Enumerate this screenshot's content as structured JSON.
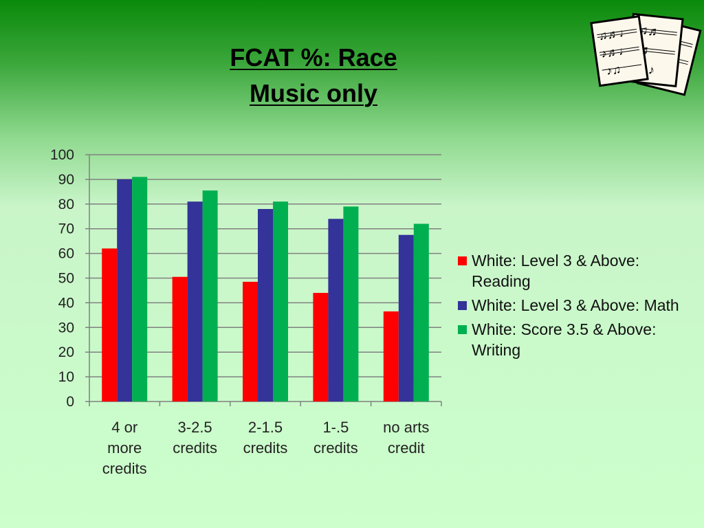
{
  "title": {
    "line1": "FCAT %: Race",
    "line2": "Music only"
  },
  "colors": {
    "reading": "#ff0000",
    "math": "#333399",
    "writing": "#00b050"
  },
  "decoration": {
    "icon": "sheet-music-icon"
  },
  "chart_data": {
    "type": "bar",
    "title": "",
    "xlabel": "",
    "ylabel": "",
    "ylim": [
      0,
      100
    ],
    "yticks": [
      0,
      10,
      20,
      30,
      40,
      50,
      60,
      70,
      80,
      90,
      100
    ],
    "grid": true,
    "legend_position": "right",
    "categories": [
      [
        "4 or",
        "more",
        "credits"
      ],
      [
        "3-2.5",
        "credits"
      ],
      [
        "2-1.5",
        "credits"
      ],
      [
        "1-.5",
        "credits"
      ],
      [
        "no arts",
        "credit"
      ]
    ],
    "series": [
      {
        "name": "White: Level 3 & Above: Reading",
        "color": "#ff0000",
        "values": [
          62,
          50.5,
          48.5,
          44,
          36.5
        ]
      },
      {
        "name": "White: Level 3 & Above: Math",
        "color": "#333399",
        "values": [
          90,
          81,
          78,
          74,
          67.5
        ]
      },
      {
        "name": "White: Score 3.5 & Above: Writing",
        "color": "#00b050",
        "values": [
          91,
          85.5,
          81,
          79,
          72
        ]
      }
    ]
  }
}
